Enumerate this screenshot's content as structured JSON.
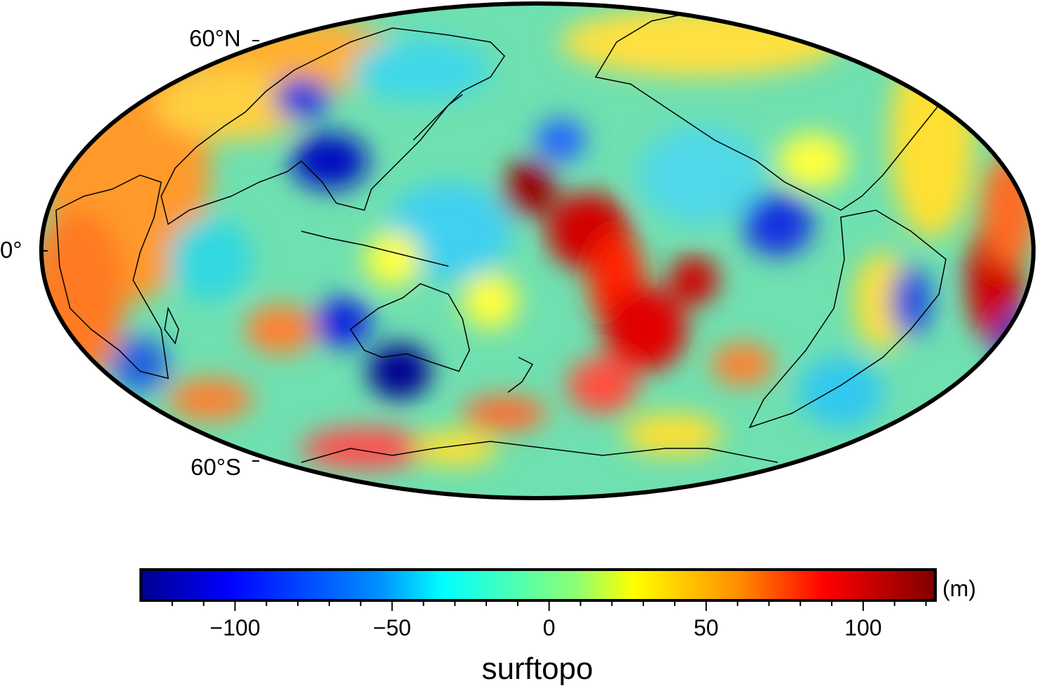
{
  "map": {
    "projection": "Hammer-Aitoff (Pacific-centred)",
    "field": "surftopo",
    "latitude_labels": [
      "60°N",
      "0°",
      "60°S"
    ],
    "features": [
      "coastlines",
      "Antarctica",
      "Australia",
      "Americas",
      "Asia",
      "Africa"
    ]
  },
  "colorbar": {
    "title": "surftopo",
    "unit": "(m)",
    "range": [
      -130,
      123
    ],
    "tick_labels": [
      "−100",
      "−50",
      "0",
      "50",
      "100"
    ],
    "tick_values": [
      -100,
      -50,
      0,
      50,
      100
    ],
    "colormap": "jet",
    "colors": [
      "#00008f",
      "#0000ff",
      "#0080ff",
      "#00ffff",
      "#80ff80",
      "#ffff00",
      "#ff8000",
      "#ff0000",
      "#800000"
    ]
  }
}
